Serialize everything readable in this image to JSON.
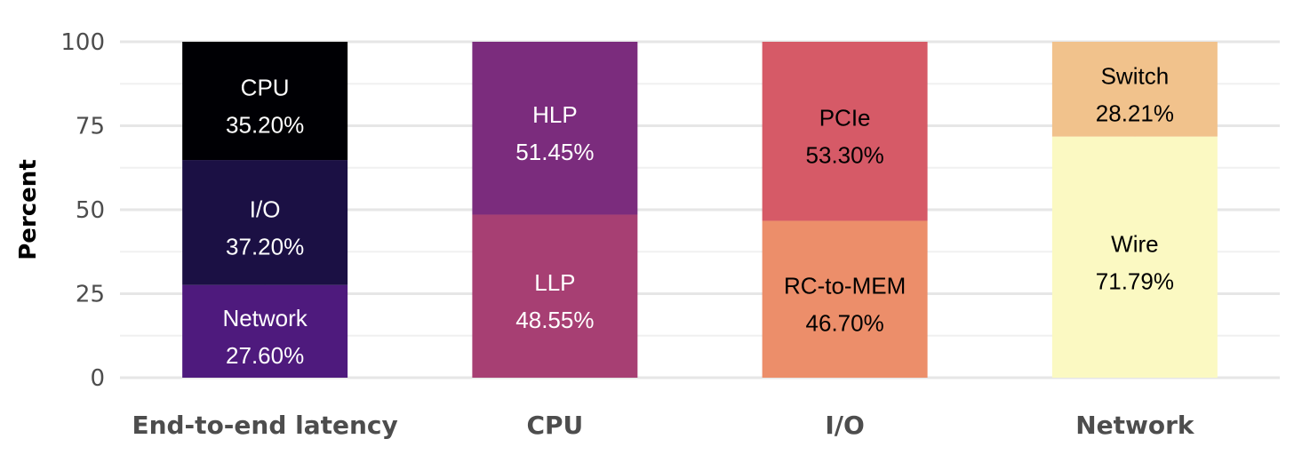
{
  "chart_data": {
    "type": "bar",
    "stacked": true,
    "ylabel": "Percent",
    "ylim": [
      0,
      100
    ],
    "yticks": [
      0,
      25,
      50,
      75,
      100
    ],
    "grid": true,
    "categories": [
      "End-to-end latency",
      "CPU",
      "I/O",
      "Network"
    ],
    "bars": [
      {
        "category": "End-to-end latency",
        "segments": [
          {
            "name": "Network",
            "value": 27.6,
            "label": "27.60%",
            "color": "#4e1a7d",
            "text_color": "#ffffff"
          },
          {
            "name": "I/O",
            "value": 37.2,
            "label": "37.20%",
            "color": "#1b1044",
            "text_color": "#ffffff"
          },
          {
            "name": "CPU",
            "value": 35.2,
            "label": "35.20%",
            "color": "#000004",
            "text_color": "#ffffff"
          }
        ]
      },
      {
        "category": "CPU",
        "segments": [
          {
            "name": "LLP",
            "value": 48.55,
            "label": "48.55%",
            "color": "#a73f73",
            "text_color": "#ffffff"
          },
          {
            "name": "HLP",
            "value": 51.45,
            "label": "51.45%",
            "color": "#7b2c7d",
            "text_color": "#ffffff"
          }
        ]
      },
      {
        "category": "I/O",
        "segments": [
          {
            "name": "RC-to-MEM",
            "value": 46.7,
            "label": "46.70%",
            "color": "#ec8e6a",
            "text_color": "#000000"
          },
          {
            "name": "PCIe",
            "value": 53.3,
            "label": "53.30%",
            "color": "#d65a67",
            "text_color": "#000000"
          }
        ]
      },
      {
        "category": "Network",
        "segments": [
          {
            "name": "Wire",
            "value": 71.79,
            "label": "71.79%",
            "color": "#fbf9c2",
            "text_color": "#000000"
          },
          {
            "name": "Switch",
            "value": 28.21,
            "label": "28.21%",
            "color": "#f1c28c",
            "text_color": "#000000"
          }
        ]
      }
    ]
  }
}
